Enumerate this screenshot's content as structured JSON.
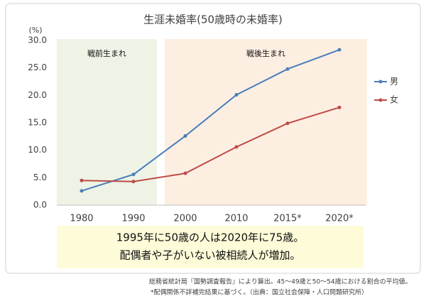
{
  "chart_data": {
    "type": "line",
    "title": "生涯未婚率(50歳時の未婚率)",
    "y_unit": "(%)",
    "categories": [
      "1980",
      "1990",
      "2000",
      "2010",
      "2015*",
      "2020*"
    ],
    "series": [
      {
        "name": "男",
        "color": "#4a7ebb",
        "values": [
          2.6,
          5.6,
          12.6,
          20.1,
          24.8,
          28.3
        ]
      },
      {
        "name": "女",
        "color": "#be4b48",
        "values": [
          4.5,
          4.3,
          5.8,
          10.6,
          14.9,
          17.8
        ]
      }
    ],
    "ylim": [
      0,
      30
    ],
    "yticks": [
      {
        "value": 0,
        "label": "0.0"
      },
      {
        "value": 5,
        "label": "5.0"
      },
      {
        "value": 10,
        "label": "10.0"
      },
      {
        "value": 15,
        "label": "15.0"
      },
      {
        "value": 20,
        "label": "20.0"
      },
      {
        "value": 25,
        "label": "25.0"
      },
      {
        "value": 30,
        "label": "30.0"
      }
    ],
    "grid": false,
    "legend": "right",
    "regions": [
      {
        "label": "戦前生まれ",
        "color": "#eef3e6"
      },
      {
        "label": "戦後生まれ",
        "color": "#fdeee2"
      }
    ],
    "annotation": [
      "1995年に50歳の人は2020年に75歳。",
      "配偶者や子がいない被相続人が増加。"
    ],
    "notes": [
      "総務省統計局『国勢調査報告』により算出。45～49歳と50～54歳における割合の平均値。",
      "*配偶関係不詳補完結果に基づく。（出典：国立社会保障・人口問題研究所）"
    ]
  }
}
